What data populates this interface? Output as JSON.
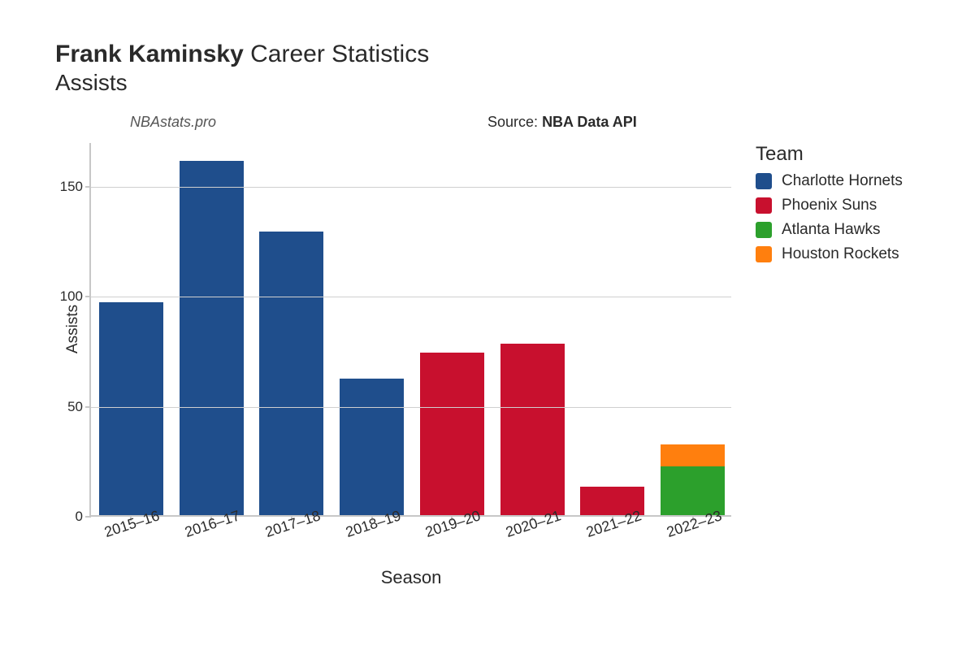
{
  "title": {
    "player_name": "Frank Kaminsky",
    "suffix": "Career Statistics",
    "stat_name": "Assists"
  },
  "annotations": {
    "watermark": "NBAstats.pro",
    "source_prefix": "Source:",
    "source_name": "NBA Data API"
  },
  "chart": {
    "type": "bar-stacked",
    "xlabel": "Season",
    "ylabel": "Assists",
    "background_color": "#ffffff",
    "grid_color": "#cfcfcf",
    "axis_color": "#c7c7c7",
    "text_color": "#2a2a2a",
    "bar_width": 0.8,
    "ylim": [
      0,
      170
    ],
    "yticks": [
      0,
      50,
      100,
      150
    ],
    "categories": [
      "2015–16",
      "2016–17",
      "2017–18",
      "2018–19",
      "2019–20",
      "2020–21",
      "2021–22",
      "2022–23"
    ],
    "series": [
      {
        "team": "Charlotte Hornets",
        "color": "#1f4e8c",
        "values": [
          97,
          161,
          129,
          62,
          0,
          0,
          0,
          0
        ]
      },
      {
        "team": "Phoenix Suns",
        "color": "#c8102e",
        "values": [
          0,
          0,
          0,
          0,
          74,
          78,
          13,
          0
        ]
      },
      {
        "team": "Atlanta Hawks",
        "color": "#2ca02c",
        "values": [
          0,
          0,
          0,
          0,
          0,
          0,
          0,
          22
        ]
      },
      {
        "team": "Houston Rockets",
        "color": "#ff7f0e",
        "values": [
          0,
          0,
          0,
          0,
          0,
          0,
          0,
          10
        ]
      }
    ],
    "legend_title": "Team",
    "tick_fontsize": 18,
    "label_fontsize": 20,
    "title_fontsize": 30
  }
}
